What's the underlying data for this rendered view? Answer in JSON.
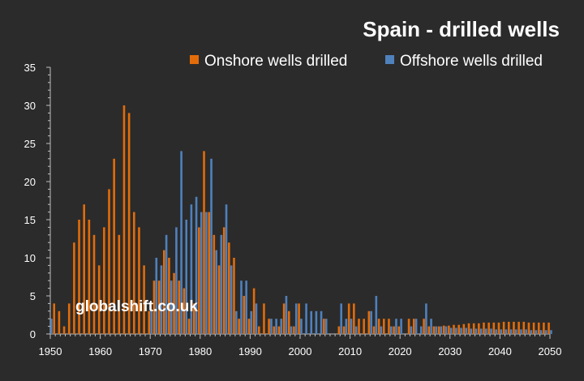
{
  "chart_data": {
    "type": "bar",
    "title": "Spain - drilled wells",
    "xlabel": "",
    "ylabel": "",
    "x_range": [
      1950,
      2050
    ],
    "ylim": [
      0,
      35
    ],
    "y_ticks": [
      0,
      5,
      10,
      15,
      20,
      25,
      30,
      35
    ],
    "x_ticks": [
      1950,
      1960,
      1970,
      1980,
      1990,
      2000,
      2010,
      2020,
      2030,
      2040,
      2050
    ],
    "legend_position": "top-right",
    "watermark": "globalshift.co.uk",
    "series": [
      {
        "name": "Onshore wells drilled",
        "color": "#e36c0a",
        "points": [
          [
            1951,
            4
          ],
          [
            1952,
            3
          ],
          [
            1953,
            1
          ],
          [
            1954,
            4
          ],
          [
            1955,
            12
          ],
          [
            1956,
            15
          ],
          [
            1957,
            17
          ],
          [
            1958,
            15
          ],
          [
            1959,
            13
          ],
          [
            1960,
            9
          ],
          [
            1961,
            14
          ],
          [
            1962,
            19
          ],
          [
            1963,
            23
          ],
          [
            1964,
            13
          ],
          [
            1965,
            30
          ],
          [
            1966,
            29
          ],
          [
            1967,
            16
          ],
          [
            1968,
            14
          ],
          [
            1969,
            9
          ],
          [
            1970,
            3
          ],
          [
            1971,
            7
          ],
          [
            1972,
            7
          ],
          [
            1973,
            11
          ],
          [
            1974,
            10
          ],
          [
            1975,
            8
          ],
          [
            1976,
            7
          ],
          [
            1977,
            6
          ],
          [
            1978,
            2
          ],
          [
            1979,
            4
          ],
          [
            1980,
            14
          ],
          [
            1981,
            24
          ],
          [
            1982,
            16
          ],
          [
            1983,
            13
          ],
          [
            1984,
            9
          ],
          [
            1985,
            14
          ],
          [
            1986,
            12
          ],
          [
            1987,
            10
          ],
          [
            1988,
            2
          ],
          [
            1989,
            5
          ],
          [
            1990,
            2
          ],
          [
            1991,
            6
          ],
          [
            1992,
            1
          ],
          [
            1993,
            4
          ],
          [
            1994,
            2
          ],
          [
            1995,
            1
          ],
          [
            1996,
            1
          ],
          [
            1997,
            4
          ],
          [
            1998,
            3
          ],
          [
            1999,
            1
          ],
          [
            2000,
            4
          ],
          [
            2005,
            2
          ],
          [
            2008,
            1
          ],
          [
            2009,
            1
          ],
          [
            2010,
            4
          ],
          [
            2011,
            4
          ],
          [
            2012,
            2
          ],
          [
            2013,
            2
          ],
          [
            2014,
            3
          ],
          [
            2015,
            1
          ],
          [
            2016,
            2
          ],
          [
            2017,
            2
          ],
          [
            2018,
            2
          ],
          [
            2019,
            1
          ],
          [
            2020,
            1
          ],
          [
            2022,
            2
          ],
          [
            2023,
            2
          ],
          [
            2025,
            2
          ],
          [
            2026,
            1
          ],
          [
            2027,
            1
          ],
          [
            2028,
            1
          ],
          [
            2029,
            1.1
          ],
          [
            2030,
            1.1
          ],
          [
            2031,
            1.2
          ],
          [
            2032,
            1.2
          ],
          [
            2033,
            1.3
          ],
          [
            2034,
            1.4
          ],
          [
            2035,
            1.4
          ],
          [
            2036,
            1.4
          ],
          [
            2037,
            1.5
          ],
          [
            2038,
            1.5
          ],
          [
            2039,
            1.5
          ],
          [
            2040,
            1.5
          ],
          [
            2041,
            1.6
          ],
          [
            2042,
            1.6
          ],
          [
            2043,
            1.6
          ],
          [
            2044,
            1.6
          ],
          [
            2045,
            1.6
          ],
          [
            2046,
            1.5
          ],
          [
            2047,
            1.5
          ],
          [
            2048,
            1.5
          ],
          [
            2049,
            1.5
          ],
          [
            2050,
            1.5
          ]
        ]
      },
      {
        "name": "Offshore wells drilled",
        "color": "#4f81bd",
        "points": [
          [
            1950,
            2
          ],
          [
            1970,
            3
          ],
          [
            1971,
            10
          ],
          [
            1972,
            9
          ],
          [
            1973,
            13
          ],
          [
            1974,
            7
          ],
          [
            1975,
            14
          ],
          [
            1976,
            24
          ],
          [
            1977,
            15
          ],
          [
            1978,
            17
          ],
          [
            1979,
            18
          ],
          [
            1980,
            16
          ],
          [
            1981,
            16
          ],
          [
            1982,
            23
          ],
          [
            1983,
            11
          ],
          [
            1984,
            13
          ],
          [
            1985,
            17
          ],
          [
            1986,
            9
          ],
          [
            1987,
            3
          ],
          [
            1988,
            7
          ],
          [
            1989,
            7
          ],
          [
            1990,
            3
          ],
          [
            1991,
            4
          ],
          [
            1994,
            2
          ],
          [
            1995,
            2
          ],
          [
            1996,
            2
          ],
          [
            1997,
            5
          ],
          [
            1998,
            1
          ],
          [
            1999,
            4
          ],
          [
            2000,
            2
          ],
          [
            2001,
            4
          ],
          [
            2002,
            3
          ],
          [
            2003,
            3
          ],
          [
            2004,
            3
          ],
          [
            2005,
            2
          ],
          [
            2008,
            4
          ],
          [
            2009,
            2
          ],
          [
            2010,
            2
          ],
          [
            2011,
            1
          ],
          [
            2014,
            3
          ],
          [
            2015,
            5
          ],
          [
            2016,
            1
          ],
          [
            2018,
            1
          ],
          [
            2019,
            2
          ],
          [
            2020,
            2
          ],
          [
            2022,
            1
          ],
          [
            2023,
            2
          ],
          [
            2024,
            1
          ],
          [
            2025,
            4
          ],
          [
            2026,
            2
          ],
          [
            2027,
            1
          ],
          [
            2028,
            1
          ],
          [
            2029,
            1
          ],
          [
            2030,
            0.8
          ],
          [
            2031,
            0.8
          ],
          [
            2032,
            0.8
          ],
          [
            2033,
            0.8
          ],
          [
            2034,
            0.7
          ],
          [
            2035,
            0.7
          ],
          [
            2036,
            0.7
          ],
          [
            2037,
            0.7
          ],
          [
            2038,
            0.7
          ],
          [
            2039,
            0.6
          ],
          [
            2040,
            0.6
          ],
          [
            2041,
            0.6
          ],
          [
            2042,
            0.6
          ],
          [
            2043,
            0.6
          ],
          [
            2044,
            0.6
          ],
          [
            2045,
            0.6
          ],
          [
            2046,
            0.5
          ],
          [
            2047,
            0.5
          ],
          [
            2048,
            0.5
          ],
          [
            2049,
            0.5
          ],
          [
            2050,
            0.5
          ]
        ]
      }
    ]
  }
}
